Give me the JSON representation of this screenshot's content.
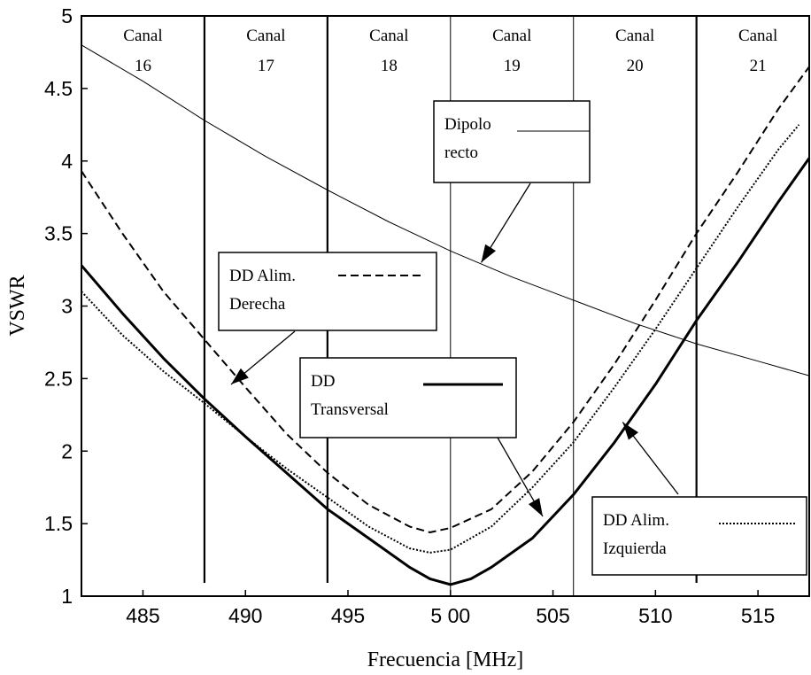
{
  "chart_data": {
    "type": "line",
    "xlabel": "Frecuencia [MHz]",
    "ylabel": "VSWR",
    "xlim": [
      482,
      517.5
    ],
    "ylim": [
      1,
      5
    ],
    "x_ticks": [
      485,
      490,
      495,
      500,
      505,
      510,
      515
    ],
    "x_tick_labels": [
      "485",
      "490",
      "495",
      "5 00",
      "505",
      "510",
      "515"
    ],
    "y_ticks": [
      1,
      1.5,
      2,
      2.5,
      3,
      3.5,
      4,
      4.5,
      5
    ],
    "y_tick_labels": [
      "1",
      "1.5",
      "2",
      "2.5",
      "3",
      "3.5",
      "4",
      "4.5",
      "5"
    ],
    "grid": false,
    "channel_boundaries": [
      488,
      494,
      500,
      506,
      512
    ],
    "channels": [
      {
        "name": "Canal",
        "number": "16",
        "center": 485
      },
      {
        "name": "Canal",
        "number": "17",
        "center": 491
      },
      {
        "name": "Canal",
        "number": "18",
        "center": 497
      },
      {
        "name": "Canal",
        "number": "19",
        "center": 503
      },
      {
        "name": "Canal",
        "number": "20",
        "center": 509
      },
      {
        "name": "Canal",
        "number": "21",
        "center": 515
      }
    ],
    "series": [
      {
        "name": "Dipolo recto",
        "label_lines": [
          "Dipolo",
          "recto"
        ],
        "style": "thin",
        "x": [
          482,
          485,
          488,
          491,
          494,
          497,
          500,
          503,
          506,
          509,
          512,
          515,
          517.5
        ],
        "y": [
          4.8,
          4.55,
          4.28,
          4.03,
          3.8,
          3.58,
          3.38,
          3.2,
          3.04,
          2.88,
          2.74,
          2.62,
          2.52
        ]
      },
      {
        "name": "DD Alim. Derecha",
        "label_lines": [
          "DD Alim.",
          "Derecha"
        ],
        "style": "dashed",
        "x": [
          482,
          484,
          486,
          488,
          490,
          492,
          494,
          496,
          498,
          499,
          500,
          502,
          504,
          506,
          508,
          510,
          512,
          514,
          516,
          517.5
        ],
        "y": [
          3.93,
          3.5,
          3.1,
          2.77,
          2.44,
          2.12,
          1.85,
          1.63,
          1.48,
          1.44,
          1.47,
          1.6,
          1.86,
          2.2,
          2.6,
          3.04,
          3.5,
          3.92,
          4.36,
          4.65
        ]
      },
      {
        "name": "DD Transversal",
        "label_lines": [
          "DD",
          "Transversal"
        ],
        "style": "thick",
        "x": [
          482,
          484,
          486,
          488,
          490,
          492,
          494,
          496,
          498,
          499,
          500,
          501,
          502,
          504,
          506,
          508,
          510,
          512,
          514,
          516,
          517.5
        ],
        "y": [
          3.28,
          2.95,
          2.64,
          2.36,
          2.1,
          1.85,
          1.6,
          1.4,
          1.2,
          1.12,
          1.08,
          1.12,
          1.2,
          1.4,
          1.7,
          2.06,
          2.46,
          2.9,
          3.3,
          3.72,
          4.02
        ]
      },
      {
        "name": "DD Alim. Izquierda",
        "label_lines": [
          "DD Alim.",
          "Izquierda"
        ],
        "style": "dotted",
        "x": [
          482,
          484,
          486,
          488,
          490,
          492,
          494,
          496,
          498,
          499,
          500,
          502,
          504,
          506,
          508,
          510,
          512,
          514,
          516,
          517
        ],
        "y": [
          3.1,
          2.8,
          2.55,
          2.33,
          2.1,
          1.88,
          1.68,
          1.48,
          1.33,
          1.3,
          1.32,
          1.48,
          1.75,
          2.06,
          2.44,
          2.84,
          3.26,
          3.68,
          4.08,
          4.25
        ]
      }
    ]
  }
}
